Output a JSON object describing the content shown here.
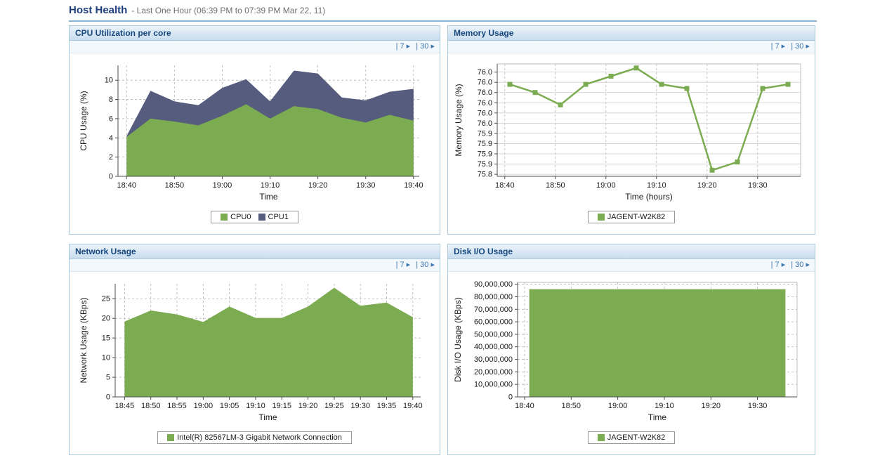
{
  "header": {
    "title": "Host Health",
    "subtitle": "- Last One Hour (06:39 PM to 07:39 PM Mar 22, 11)"
  },
  "range_links": {
    "week": "| 7 ▸",
    "month": "| 30 ▸"
  },
  "theme": {
    "header_title_color": "#1d3d7b",
    "panel_border": "#a9c8dc",
    "panel_title_color": "#15477e",
    "link_color": "#3f77ad",
    "series_green": "#7CAC51",
    "series_slate": "#565C7D"
  },
  "chart_data": [
    {
      "title": "CPU Utilization per core",
      "type": "area",
      "stacked": true,
      "xlabel": "Time",
      "ylabel": "CPU Usage (%)",
      "grid": "dashed",
      "hgrid": "dashed",
      "x": [
        0,
        5,
        10,
        15,
        20,
        25,
        30,
        35,
        40,
        45,
        50,
        55,
        60
      ],
      "xlim": [
        -1.8,
        61.2
      ],
      "xticks": [
        {
          "v": 0,
          "l": "18:40"
        },
        {
          "v": 10,
          "l": "18:50"
        },
        {
          "v": 20,
          "l": "19:00"
        },
        {
          "v": 30,
          "l": "19:10"
        },
        {
          "v": 40,
          "l": "19:20"
        },
        {
          "v": 50,
          "l": "19:30"
        },
        {
          "v": 60,
          "l": "19:40"
        }
      ],
      "ylim": [
        0,
        11.55
      ],
      "yticks": [
        {
          "v": 0,
          "l": "0"
        },
        {
          "v": 2,
          "l": "2"
        },
        {
          "v": 4,
          "l": "4"
        },
        {
          "v": 6,
          "l": "6"
        },
        {
          "v": 8,
          "l": "8"
        },
        {
          "v": 10,
          "l": "10"
        }
      ],
      "series": [
        {
          "name": "CPU0",
          "color": "#7CAC51",
          "values": [
            4.1,
            6.0,
            5.7,
            5.3,
            6.3,
            7.5,
            6.0,
            7.3,
            7.0,
            6.1,
            5.6,
            6.4,
            5.8
          ]
        },
        {
          "name": "CPU1",
          "color": "#565C7D",
          "values": [
            0.1,
            2.9,
            2.1,
            2.1,
            2.9,
            2.6,
            1.8,
            3.7,
            3.7,
            2.1,
            2.3,
            2.4,
            3.3
          ]
        }
      ],
      "legend_position": "bottom"
    },
    {
      "title": "Memory Usage",
      "type": "line",
      "markers": true,
      "box": true,
      "xlabel": "Time (hours)",
      "ylabel": "Memory Usage (%)",
      "grid": "dashed",
      "hgrid": "solid",
      "x": [
        1,
        6,
        11,
        16,
        21,
        26,
        31,
        36,
        41,
        46,
        51,
        56
      ],
      "xlim": [
        -1.5,
        58.5
      ],
      "xticks": [
        {
          "v": 0,
          "l": "18:40"
        },
        {
          "v": 10,
          "l": "18:50"
        },
        {
          "v": 20,
          "l": "19:00"
        },
        {
          "v": 30,
          "l": "19:10"
        },
        {
          "v": 40,
          "l": "19:20"
        },
        {
          "v": 50,
          "l": "19:30"
        }
      ],
      "ylim": [
        75.795,
        76.07
      ],
      "yticks": [
        {
          "v": 76.05,
          "l": "76.0"
        },
        {
          "v": 76.025,
          "l": "76.0"
        },
        {
          "v": 76.0,
          "l": "76.0"
        },
        {
          "v": 75.975,
          "l": "76.0"
        },
        {
          "v": 75.95,
          "l": "76.0"
        },
        {
          "v": 75.925,
          "l": "76.0"
        },
        {
          "v": 75.9,
          "l": "75.9"
        },
        {
          "v": 75.875,
          "l": "75.9"
        },
        {
          "v": 75.85,
          "l": "75.9"
        },
        {
          "v": 75.825,
          "l": "75.9"
        },
        {
          "v": 75.8,
          "l": "75.8"
        }
      ],
      "series": [
        {
          "name": "JAGENT-W2K82",
          "color": "#7CAC51",
          "values": [
            76.02,
            76.0,
            75.97,
            76.02,
            76.04,
            76.06,
            76.02,
            76.01,
            75.81,
            75.83,
            76.01,
            76.02
          ]
        }
      ],
      "legend_position": "bottom"
    },
    {
      "title": "Network Usage",
      "type": "area",
      "stacked": false,
      "xlabel": "Time",
      "ylabel": "Network Usage (KBps)",
      "grid": "dashed",
      "hgrid": "dashed",
      "x": [
        5,
        10,
        15,
        20,
        25,
        30,
        35,
        40,
        45,
        50,
        55,
        60
      ],
      "xlim": [
        3.2,
        61.5
      ],
      "xticks": [
        {
          "v": 5,
          "l": "18:45"
        },
        {
          "v": 10,
          "l": "18:50"
        },
        {
          "v": 15,
          "l": "18:55"
        },
        {
          "v": 20,
          "l": "19:00"
        },
        {
          "v": 25,
          "l": "19:05"
        },
        {
          "v": 30,
          "l": "19:10"
        },
        {
          "v": 35,
          "l": "19:15"
        },
        {
          "v": 40,
          "l": "19:20"
        },
        {
          "v": 45,
          "l": "19:25"
        },
        {
          "v": 50,
          "l": "19:30"
        },
        {
          "v": 55,
          "l": "19:35"
        },
        {
          "v": 60,
          "l": "19:40"
        }
      ],
      "ylim": [
        0,
        28.8
      ],
      "yticks": [
        {
          "v": 0,
          "l": "0"
        },
        {
          "v": 5,
          "l": "5"
        },
        {
          "v": 10,
          "l": "10"
        },
        {
          "v": 15,
          "l": "15"
        },
        {
          "v": 20,
          "l": "20"
        },
        {
          "v": 25,
          "l": "25"
        }
      ],
      "series": [
        {
          "name": "Intel(R) 82567LM-3 Gigabit Network Connection",
          "color": "#7CAC51",
          "values": [
            19.2,
            22.0,
            21.0,
            19.1,
            23.0,
            20.1,
            20.1,
            23.0,
            27.8,
            23.2,
            24.0,
            20.3
          ]
        }
      ],
      "legend_position": "bottom"
    },
    {
      "title": "Disk I/O Usage",
      "type": "area",
      "stacked": false,
      "box": true,
      "xlabel": "Time",
      "ylabel": "Disk I/O Usage (KBps)",
      "grid": "dashed",
      "hgrid": "dashed",
      "x": [
        1,
        56
      ],
      "xlim": [
        -1.5,
        58.5
      ],
      "xticks": [
        {
          "v": 0,
          "l": "18:40"
        },
        {
          "v": 10,
          "l": "18:50"
        },
        {
          "v": 20,
          "l": "19:00"
        },
        {
          "v": 30,
          "l": "19:10"
        },
        {
          "v": 40,
          "l": "19:20"
        },
        {
          "v": 50,
          "l": "19:30"
        }
      ],
      "ylim": [
        0,
        91500000
      ],
      "yticks": [
        {
          "v": 0,
          "l": "0"
        },
        {
          "v": 10000000,
          "l": "10,000,000"
        },
        {
          "v": 20000000,
          "l": "20,000,000"
        },
        {
          "v": 30000000,
          "l": "30,000,000"
        },
        {
          "v": 40000000,
          "l": "40,000,000"
        },
        {
          "v": 50000000,
          "l": "50,000,000"
        },
        {
          "v": 60000000,
          "l": "60,000,000"
        },
        {
          "v": 70000000,
          "l": "70,000,000"
        },
        {
          "v": 80000000,
          "l": "80,000,000"
        },
        {
          "v": 90000000,
          "l": "90,000,000"
        }
      ],
      "series": [
        {
          "name": "JAGENT-W2K82",
          "color": "#7CAC51",
          "values": [
            86000000,
            86000000
          ]
        }
      ],
      "legend_position": "bottom"
    }
  ]
}
